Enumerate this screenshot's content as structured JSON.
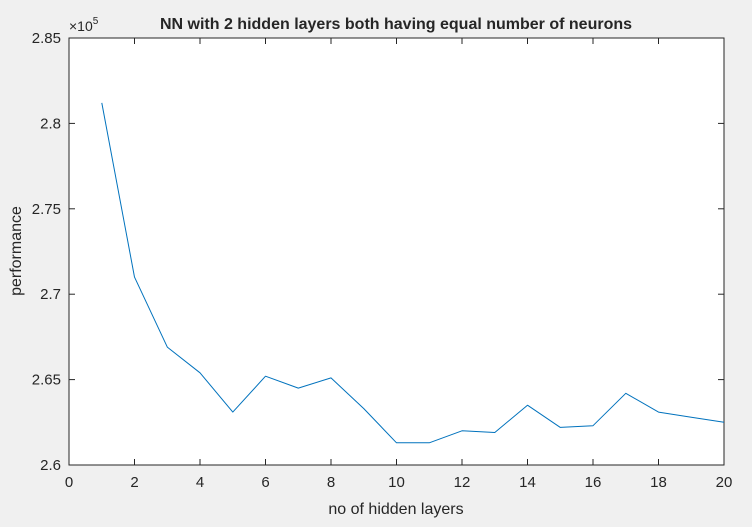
{
  "chart_data": {
    "type": "line",
    "title": "NN with 2 hidden layers both having equal number of neurons",
    "xlabel": "no of hidden layers",
    "ylabel": "performance",
    "xlim": [
      0,
      20
    ],
    "ylim": [
      2.6,
      2.85
    ],
    "x_ticks": [
      "0",
      "2",
      "4",
      "6",
      "8",
      "10",
      "12",
      "14",
      "16",
      "18",
      "20"
    ],
    "y_ticks": [
      "2.6",
      "2.65",
      "2.7",
      "2.75",
      "2.8",
      "2.85"
    ],
    "y_multiplier_base": "×10",
    "y_multiplier_exponent": "5",
    "grid": false,
    "series": [
      {
        "color": "#0072bd",
        "x": [
          1,
          2,
          3,
          4,
          5,
          6,
          7,
          8,
          9,
          10,
          11,
          12,
          13,
          14,
          15,
          16,
          17,
          18,
          19,
          20
        ],
        "y": [
          2.812,
          2.71,
          2.669,
          2.654,
          2.631,
          2.652,
          2.645,
          2.651,
          2.633,
          2.613,
          2.613,
          2.62,
          2.619,
          2.635,
          2.622,
          2.623,
          2.642,
          2.631,
          2.628,
          2.625
        ]
      }
    ]
  }
}
